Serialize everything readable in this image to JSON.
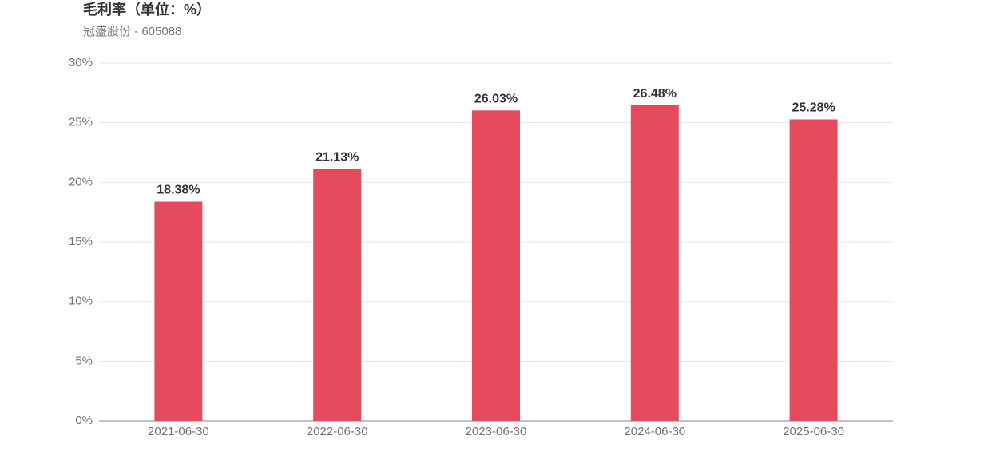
{
  "chart_data": {
    "type": "bar",
    "title": "毛利率（单位：%）",
    "subtitle": "冠盛股份 - 605088",
    "categories": [
      "2021-06-30",
      "2022-06-30",
      "2023-06-30",
      "2024-06-30",
      "2025-06-30"
    ],
    "values": [
      18.38,
      21.13,
      26.03,
      26.48,
      25.28
    ],
    "value_labels": [
      "18.38%",
      "21.13%",
      "26.03%",
      "26.48%",
      "25.28%"
    ],
    "color": "#e64a5d",
    "ylim": [
      0,
      30
    ],
    "yticks": [
      {
        "value": 0,
        "label": "0%"
      },
      {
        "value": 5,
        "label": "5%"
      },
      {
        "value": 10,
        "label": "10%"
      },
      {
        "value": 15,
        "label": "15%"
      },
      {
        "value": 20,
        "label": "20%"
      },
      {
        "value": 25,
        "label": "25%"
      },
      {
        "value": 30,
        "label": "30%"
      }
    ],
    "grid": true
  }
}
